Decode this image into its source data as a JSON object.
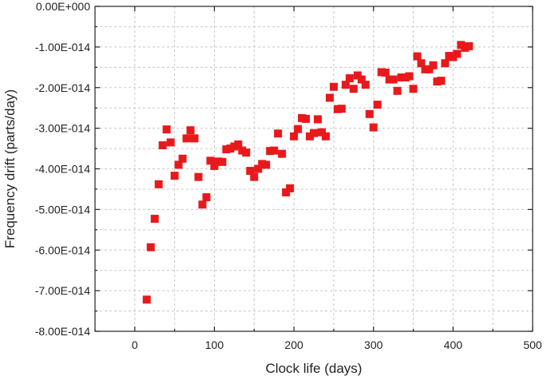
{
  "chart_data": {
    "type": "scatter",
    "title": "",
    "xlabel": "Clock life (days)",
    "ylabel": "Frequency drift (parts/day)",
    "xlim": [
      -50,
      500
    ],
    "ylim": [
      -8e-14,
      0
    ],
    "x_ticks": [
      0,
      100,
      200,
      300,
      400,
      500
    ],
    "x_tick_labels": [
      "0",
      "100",
      "200",
      "300",
      "400",
      "500"
    ],
    "y_ticks": [
      0,
      -1e-14,
      -2e-14,
      -3e-14,
      -4e-14,
      -5e-14,
      -6e-14,
      -7e-14,
      -8e-14
    ],
    "y_tick_labels": [
      "0.00E+000",
      "-1.00E-014",
      "-2.00E-014",
      "-3.00E-014",
      "-4.00E-014",
      "-5.00E-014",
      "-6.00E-014",
      "-7.00E-014",
      "-8.00E-014"
    ],
    "grid": true,
    "marker": "square",
    "marker_color": "#e8191b",
    "series": [
      {
        "x": [
          15,
          20,
          25,
          30,
          35,
          40,
          45,
          50,
          55,
          60,
          65,
          70,
          75,
          80,
          85,
          90,
          95,
          100,
          105,
          110,
          115,
          120,
          125,
          130,
          135,
          140,
          145,
          150,
          155,
          160,
          165,
          170,
          175,
          180,
          185,
          190,
          195,
          200,
          205,
          210,
          215,
          220,
          225,
          230,
          235,
          240,
          245,
          250,
          255,
          260,
          265,
          270,
          275,
          280,
          285,
          290,
          295,
          300,
          305,
          310,
          315,
          320,
          325,
          330,
          335,
          340,
          345,
          350,
          355,
          360,
          365,
          370,
          375,
          380,
          385,
          390,
          395,
          400,
          405,
          410,
          415,
          420
        ],
        "y": [
          -7.22e-14,
          -5.93e-14,
          -5.23e-14,
          -4.38e-14,
          -3.42e-14,
          -3.03e-14,
          -3.35e-14,
          -4.17e-14,
          -3.9e-14,
          -3.75e-14,
          -3.25e-14,
          -3.05e-14,
          -3.25e-14,
          -4.2e-14,
          -4.88e-14,
          -4.7e-14,
          -3.8e-14,
          -3.93e-14,
          -3.82e-14,
          -3.83e-14,
          -3.52e-14,
          -3.5e-14,
          -3.45e-14,
          -3.4e-14,
          -3.55e-14,
          -3.6e-14,
          -4.05e-14,
          -4.2e-14,
          -4e-14,
          -3.88e-14,
          -3.9e-14,
          -3.56e-14,
          -3.55e-14,
          -3.13e-14,
          -3.63e-14,
          -4.58e-14,
          -4.48e-14,
          -3.2e-14,
          -3.02e-14,
          -2.75e-14,
          -2.77e-14,
          -3.2e-14,
          -3.12e-14,
          -2.78e-14,
          -3.1e-14,
          -3.2e-14,
          -2.25e-14,
          -1.98e-14,
          -2.53e-14,
          -2.52e-14,
          -1.93e-14,
          -1.77e-14,
          -2.03e-14,
          -1.7e-14,
          -1.8e-14,
          -1.93e-14,
          -2.65e-14,
          -2.98e-14,
          -2.42e-14,
          -1.62e-14,
          -1.63e-14,
          -1.8e-14,
          -1.8e-14,
          -2.08e-14,
          -1.75e-14,
          -1.75e-14,
          -1.72e-14,
          -2.03e-14,
          -1.23e-14,
          -1.4e-14,
          -1.55e-14,
          -1.55e-14,
          -1.45e-14,
          -1.85e-14,
          -1.83e-14,
          -1.4e-14,
          -1.22e-14,
          -1.25e-14,
          -1.17e-14,
          -9.5e-15,
          -1.02e-14,
          -9.8e-15
        ]
      }
    ]
  }
}
